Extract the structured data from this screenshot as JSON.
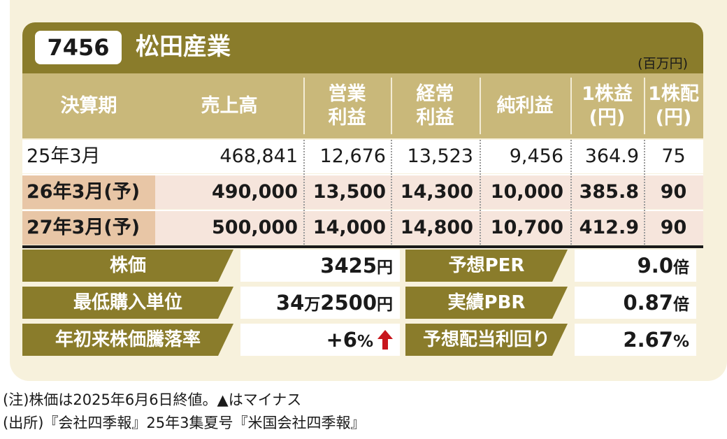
{
  "header": {
    "code": "7456",
    "company": "松田産業",
    "unit": "(百万円)"
  },
  "columns": [
    {
      "line1": "決算期",
      "line2": ""
    },
    {
      "line1": "売上高",
      "line2": ""
    },
    {
      "line1": "営業",
      "line2": "利益"
    },
    {
      "line1": "経常",
      "line2": "利益"
    },
    {
      "line1": "純利益",
      "line2": ""
    },
    {
      "line1": "1株益",
      "line2": "(円)"
    },
    {
      "line1": "1株配",
      "line2": "(円)"
    }
  ],
  "rows": [
    {
      "period": "25年3月",
      "sales": "468,841",
      "op": "12,676",
      "ord": "13,523",
      "net": "9,456",
      "eps": "364.9",
      "div": "75"
    },
    {
      "period": "26年3月(予)",
      "sales": "490,000",
      "op": "13,500",
      "ord": "14,300",
      "net": "10,000",
      "eps": "385.8",
      "div": "90"
    },
    {
      "period": "27年3月(予)",
      "sales": "500,000",
      "op": "14,000",
      "ord": "14,800",
      "net": "10,700",
      "eps": "412.9",
      "div": "90"
    }
  ],
  "metrics_left": [
    {
      "label": "株価",
      "value": "3425",
      "unit": "円"
    },
    {
      "label": "最低購入単位",
      "value": "34",
      "unit_mid": "万",
      "value2": "2500",
      "unit": "円"
    },
    {
      "label": "年初来株価騰落率",
      "value": "+6",
      "unit": "%",
      "arrow": "up",
      "arrow_color": "#c8161d"
    }
  ],
  "metrics_right": [
    {
      "label": "予想PER",
      "value": "9.0",
      "unit": "倍"
    },
    {
      "label": "実績PBR",
      "value": "0.87",
      "unit": "倍"
    },
    {
      "label": "予想配当利回り",
      "value": "2.67",
      "unit": "%"
    }
  ],
  "notes": [
    "(注)株価は2025年6月6日終値。▲はマイナス",
    "(出所)『会社四季報』25年3集夏号『米国会社四季報』"
  ]
}
